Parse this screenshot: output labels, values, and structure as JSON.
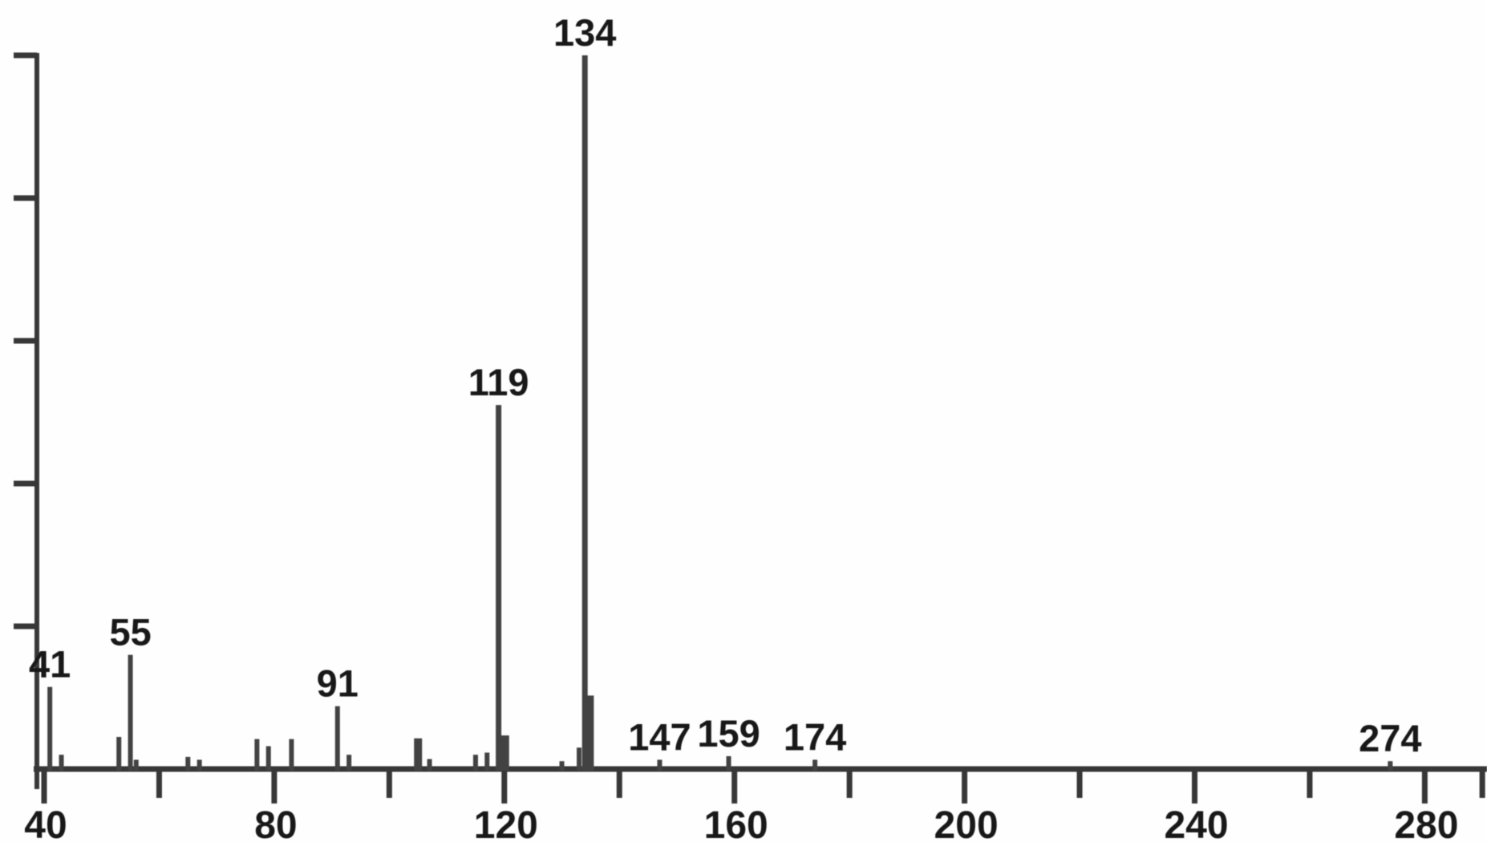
{
  "chart_data": {
    "type": "bar",
    "chart_kind": "mass-spectrum",
    "title": "",
    "xlabel": "",
    "ylabel": "",
    "legend": "none",
    "grid": false,
    "x_axis": {
      "min": 38,
      "max": 292,
      "major_ticks": [
        40,
        80,
        120,
        160,
        200,
        240,
        280
      ],
      "major_tick_labels": [
        "40",
        "80",
        "120",
        "160",
        "200",
        "240",
        "280"
      ],
      "minor_ticks": [
        60,
        100,
        140,
        180,
        220,
        260,
        290
      ]
    },
    "y_axis": {
      "min": 0,
      "max": 100,
      "tick_interval": 20,
      "tick_values": [
        0,
        20,
        40,
        60,
        80,
        100
      ],
      "labels_shown": false
    },
    "peaks": [
      {
        "mz": 41,
        "intensity": 11.5,
        "label": "41"
      },
      {
        "mz": 43,
        "intensity": 2.0,
        "label": ""
      },
      {
        "mz": 53,
        "intensity": 4.5,
        "label": ""
      },
      {
        "mz": 55,
        "intensity": 16.0,
        "label": "55"
      },
      {
        "mz": 56,
        "intensity": 1.3,
        "label": ""
      },
      {
        "mz": 65,
        "intensity": 1.7,
        "label": ""
      },
      {
        "mz": 67,
        "intensity": 1.3,
        "label": ""
      },
      {
        "mz": 77,
        "intensity": 4.2,
        "label": ""
      },
      {
        "mz": 79,
        "intensity": 3.2,
        "label": ""
      },
      {
        "mz": 83,
        "intensity": 4.2,
        "label": ""
      },
      {
        "mz": 91,
        "intensity": 8.8,
        "label": "91"
      },
      {
        "mz": 93,
        "intensity": 2.0,
        "label": ""
      },
      {
        "mz": 105,
        "intensity": 4.3,
        "label": ""
      },
      {
        "mz": 107,
        "intensity": 1.4,
        "label": ""
      },
      {
        "mz": 115,
        "intensity": 2.0,
        "label": ""
      },
      {
        "mz": 117,
        "intensity": 2.3,
        "label": ""
      },
      {
        "mz": 119,
        "intensity": 51.0,
        "label": "119"
      },
      {
        "mz": 120,
        "intensity": 4.7,
        "label": ""
      },
      {
        "mz": 130,
        "intensity": 1.1,
        "label": ""
      },
      {
        "mz": 133,
        "intensity": 3.0,
        "label": ""
      },
      {
        "mz": 134,
        "intensity": 100.0,
        "label": "134"
      },
      {
        "mz": 135,
        "intensity": 10.3,
        "label": ""
      },
      {
        "mz": 147,
        "intensity": 1.3,
        "label": "147"
      },
      {
        "mz": 159,
        "intensity": 1.8,
        "label": "159"
      },
      {
        "mz": 174,
        "intensity": 1.3,
        "label": "174"
      },
      {
        "mz": 274,
        "intensity": 1.1,
        "label": "274"
      }
    ],
    "labeled_peaks": [
      "41",
      "55",
      "91",
      "119",
      "134",
      "147",
      "159",
      "174",
      "274"
    ],
    "colors": {
      "background": "#ffffff",
      "axis": "#3a3a3a",
      "peak": "#454545",
      "text": "#1d1d1d"
    }
  }
}
